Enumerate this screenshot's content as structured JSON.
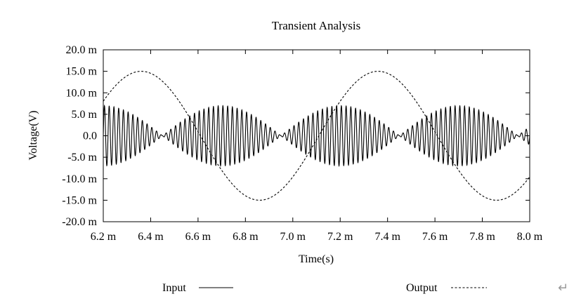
{
  "chart_data": {
    "type": "line",
    "title": "Transient Analysis",
    "xlabel": "Time(s)",
    "ylabel": "Voltage(V)",
    "xlim": [
      0.0062,
      0.008
    ],
    "ylim": [
      -0.02,
      0.02
    ],
    "x_ticks": [
      0.0062,
      0.0064,
      0.0066,
      0.0068,
      0.007,
      0.0072,
      0.0074,
      0.0076,
      0.0078,
      0.008
    ],
    "x_tick_labels": [
      "6.2 m",
      "6.4 m",
      "6.6 m",
      "6.8 m",
      "7.0 m",
      "7.2 m",
      "7.4 m",
      "7.6 m",
      "7.8 m",
      "8.0 m"
    ],
    "y_ticks": [
      0.02,
      0.015,
      0.01,
      0.005,
      0.0,
      -0.005,
      -0.01,
      -0.015,
      -0.02
    ],
    "y_tick_labels": [
      "20.0 m",
      "15.0 m",
      "10.0 m",
      "5.0 m",
      "0.0",
      "-5.0 m",
      "-10.0 m",
      "-15.0 m",
      "-20.0 m"
    ],
    "grid": false,
    "legend_position": "bottom",
    "series": [
      {
        "name": "Input",
        "style": "solid",
        "color": "#000000",
        "description_values": {
          "carrier_frequency_hz": 50000,
          "envelope_amplitude_v": 0.007,
          "envelope_period_s": 0.0005,
          "envelope_min_at_s": [
            0.00645,
            0.0069,
            0.0074,
            0.0079
          ],
          "envelope_max_at_s": [
            0.0062,
            0.00668,
            0.00718,
            0.00768
          ]
        }
      },
      {
        "name": "Output",
        "style": "dashed",
        "color": "#000000",
        "description_values": {
          "frequency_hz": 1000,
          "amplitude_v": 0.015,
          "peaks_at_s": [
            0.00636,
            0.00736
          ],
          "troughs_at_s": [
            0.00686,
            0.00786
          ]
        }
      }
    ]
  },
  "legend": {
    "input_label": "Input",
    "output_label": "Output"
  },
  "decor": {
    "return_glyph": "↵"
  }
}
